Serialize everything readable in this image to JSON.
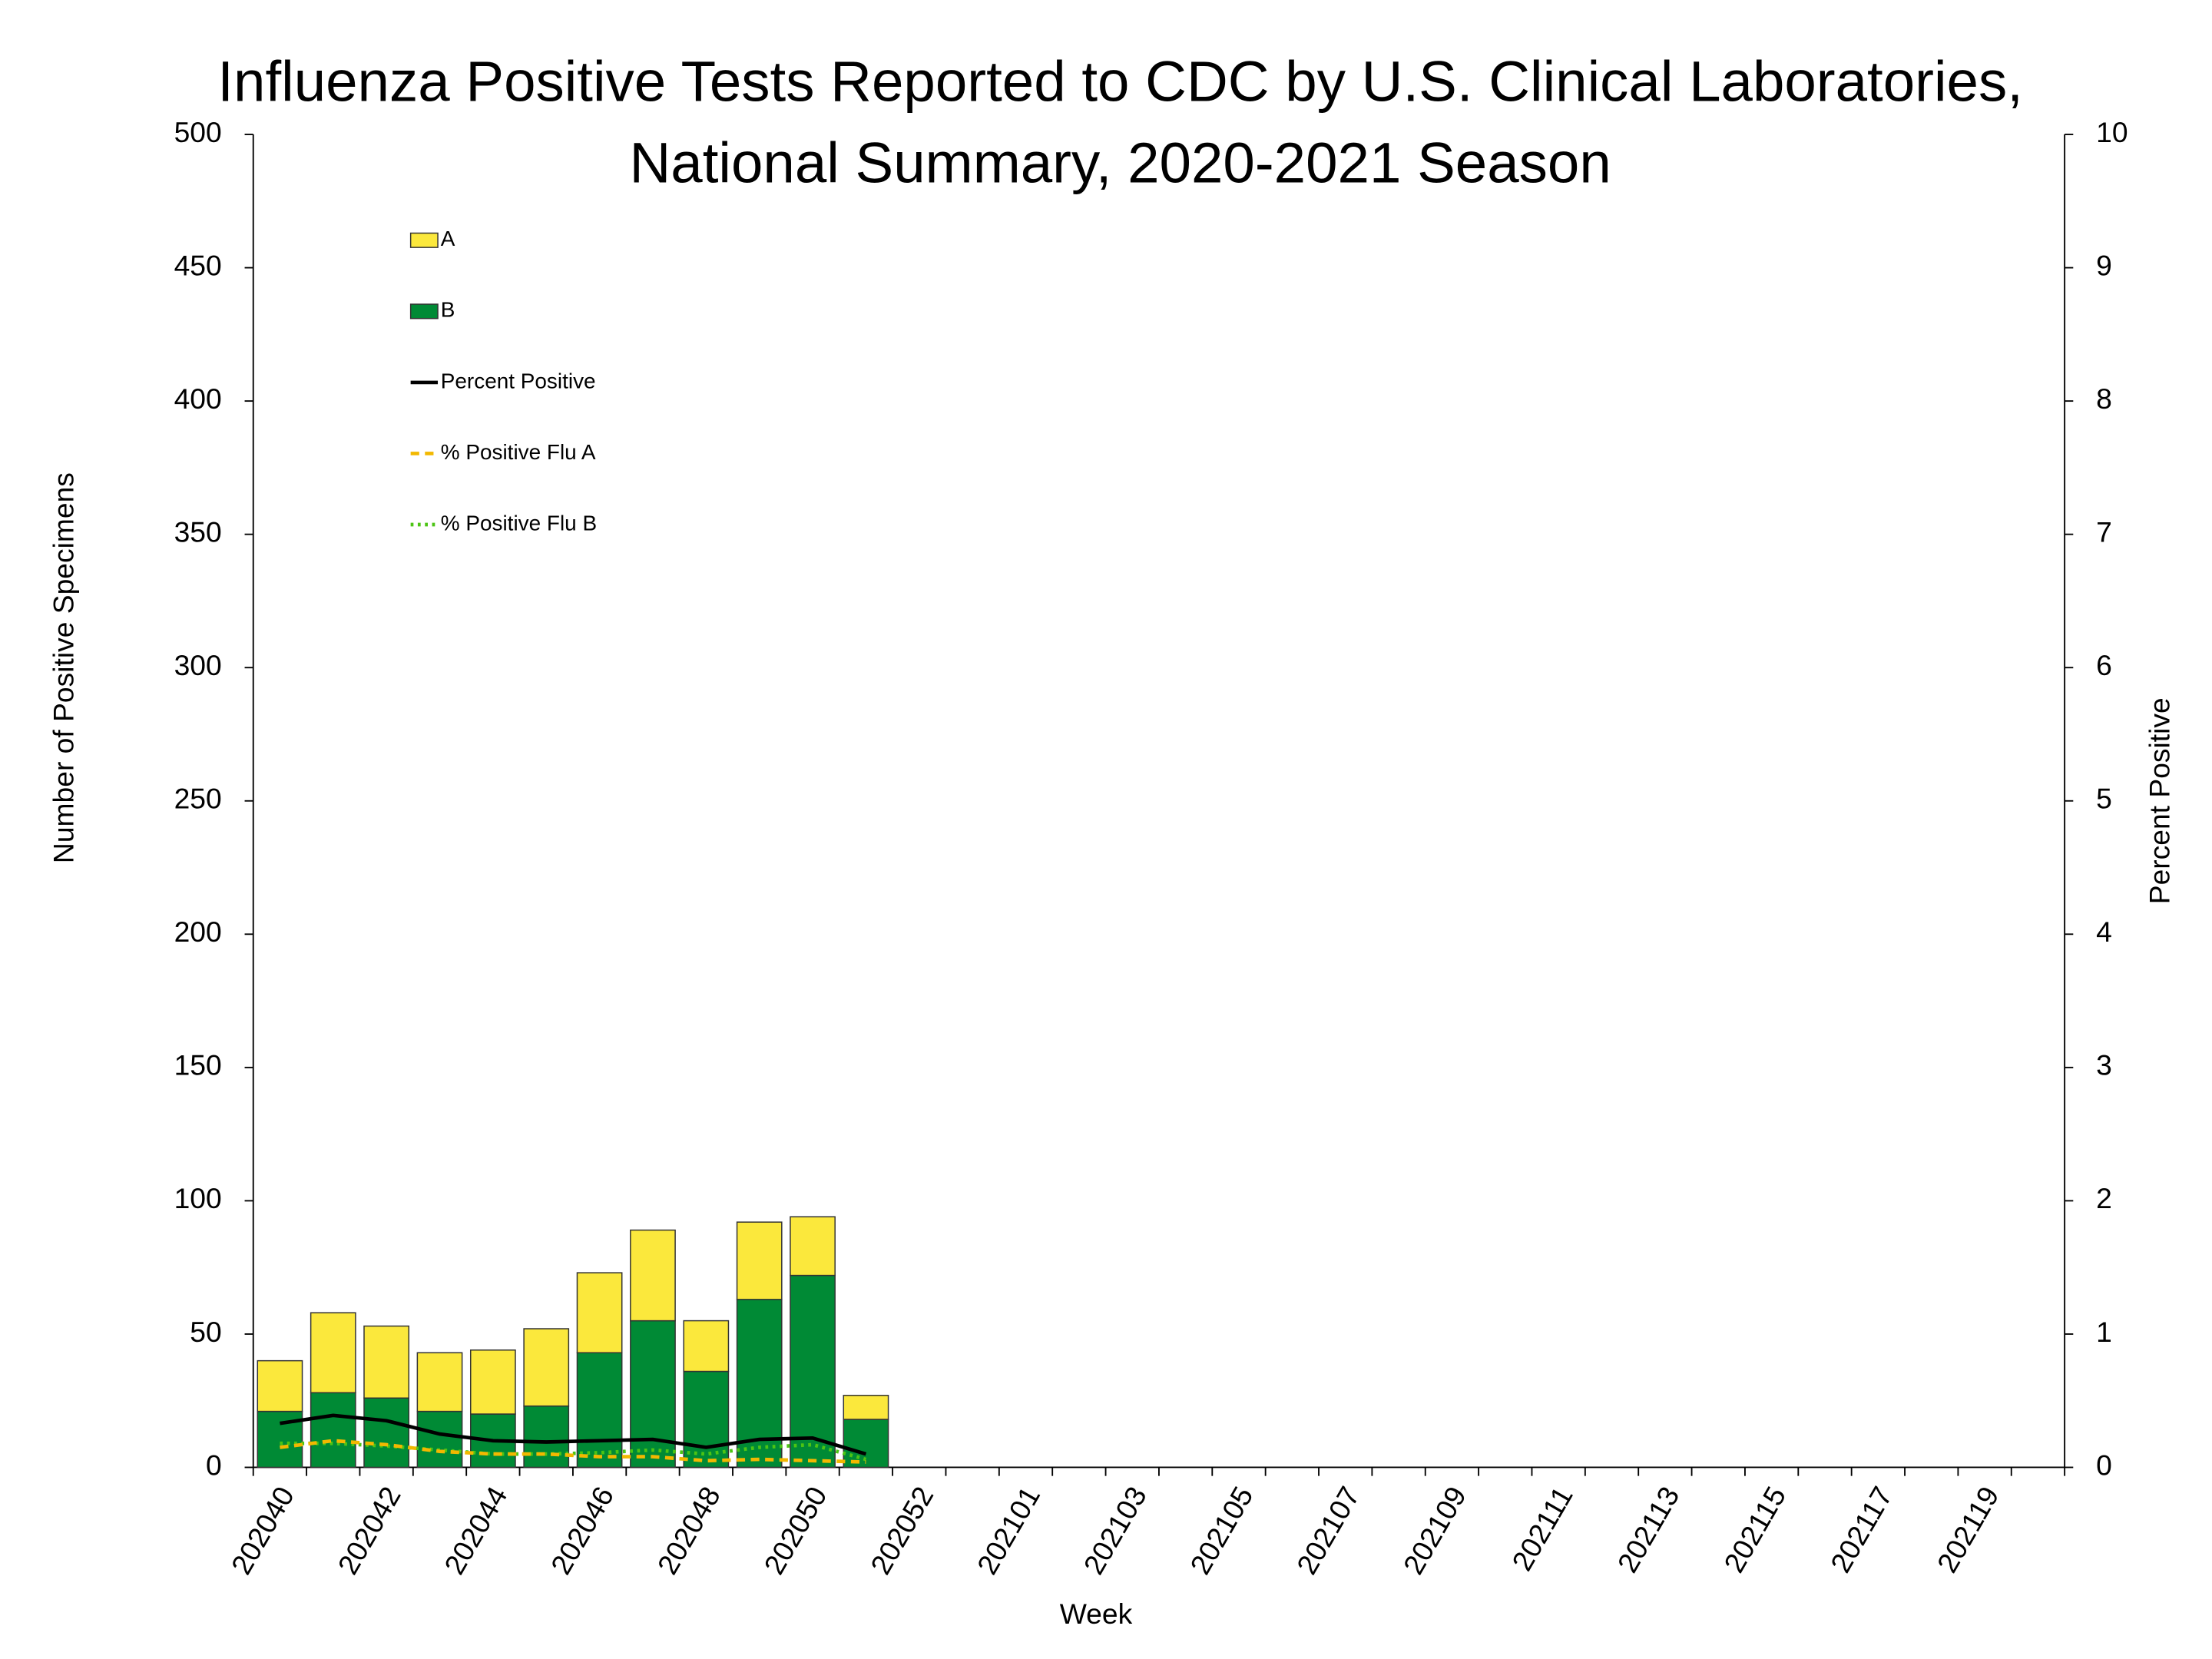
{
  "chart_data": {
    "type": "bar",
    "title": [
      "Influenza Positive Tests Reported to CDC by U.S. Clinical Laboratories,",
      "National Summary, 2020-2021 Season"
    ],
    "x_label": "Week",
    "y_label": "Number of Positive Specimens",
    "y2_label": "Percent Positive",
    "categories": [
      "202040",
      null,
      "202042",
      null,
      "202044",
      null,
      "202046",
      null,
      "202048",
      null,
      "202050",
      null,
      "202052",
      null,
      "202101",
      null,
      "202103",
      null,
      "202105",
      null,
      "202107",
      null,
      "202109",
      null,
      "202111",
      null,
      "202113",
      null,
      "202115",
      null,
      "202117",
      null,
      "202119",
      null
    ],
    "ylim": [
      0,
      500
    ],
    "yticks": [
      0,
      50,
      100,
      150,
      200,
      250,
      300,
      350,
      400,
      450,
      500
    ],
    "y2lim": [
      0,
      10
    ],
    "y2ticks": [
      0,
      1,
      2,
      3,
      4,
      5,
      6,
      7,
      8,
      9,
      10
    ],
    "legend": "upper left",
    "series": [
      {
        "name": "A",
        "type": "bar",
        "color": "#fbe83c",
        "values": [
          19,
          30,
          27,
          22,
          24,
          29,
          30,
          34,
          19,
          29,
          22,
          9,
          null,
          null,
          null,
          null,
          null,
          null,
          null,
          null,
          null,
          null,
          null,
          null,
          null,
          null,
          null,
          null,
          null,
          null,
          null,
          null,
          null,
          null
        ]
      },
      {
        "name": "B",
        "type": "bar",
        "color": "#008a35",
        "values": [
          21,
          28,
          26,
          21,
          20,
          23,
          43,
          55,
          36,
          63,
          72,
          18,
          null,
          null,
          null,
          null,
          null,
          null,
          null,
          null,
          null,
          null,
          null,
          null,
          null,
          null,
          null,
          null,
          null,
          null,
          null,
          null,
          null,
          null
        ]
      },
      {
        "name": "Percent Positive",
        "type": "line",
        "axis": "y2",
        "color": "#000000",
        "dash": "solid",
        "values": [
          0.33,
          0.39,
          0.35,
          0.25,
          0.2,
          0.19,
          0.2,
          0.21,
          0.15,
          0.21,
          0.22,
          0.1,
          null,
          null,
          null,
          null,
          null,
          null,
          null,
          null,
          null,
          null,
          null,
          null,
          null,
          null,
          null,
          null,
          null,
          null,
          null,
          null,
          null,
          null
        ]
      },
      {
        "name": "% Positive Flu A",
        "type": "line",
        "axis": "y2",
        "color": "#f2b800",
        "dash": "dashed",
        "values": [
          0.15,
          0.2,
          0.17,
          0.12,
          0.1,
          0.1,
          0.08,
          0.08,
          0.05,
          0.06,
          0.05,
          0.04,
          null,
          null,
          null,
          null,
          null,
          null,
          null,
          null,
          null,
          null,
          null,
          null,
          null,
          null,
          null,
          null,
          null,
          null,
          null,
          null,
          null,
          null
        ]
      },
      {
        "name": "% Positive Flu B",
        "type": "line",
        "axis": "y2",
        "color": "#4cc414",
        "dash": "dotted",
        "values": [
          0.18,
          0.18,
          0.16,
          0.13,
          0.1,
          0.1,
          0.11,
          0.13,
          0.1,
          0.15,
          0.17,
          0.06,
          null,
          null,
          null,
          null,
          null,
          null,
          null,
          null,
          null,
          null,
          null,
          null,
          null,
          null,
          null,
          null,
          null,
          null,
          null,
          null,
          null,
          null
        ]
      }
    ]
  }
}
